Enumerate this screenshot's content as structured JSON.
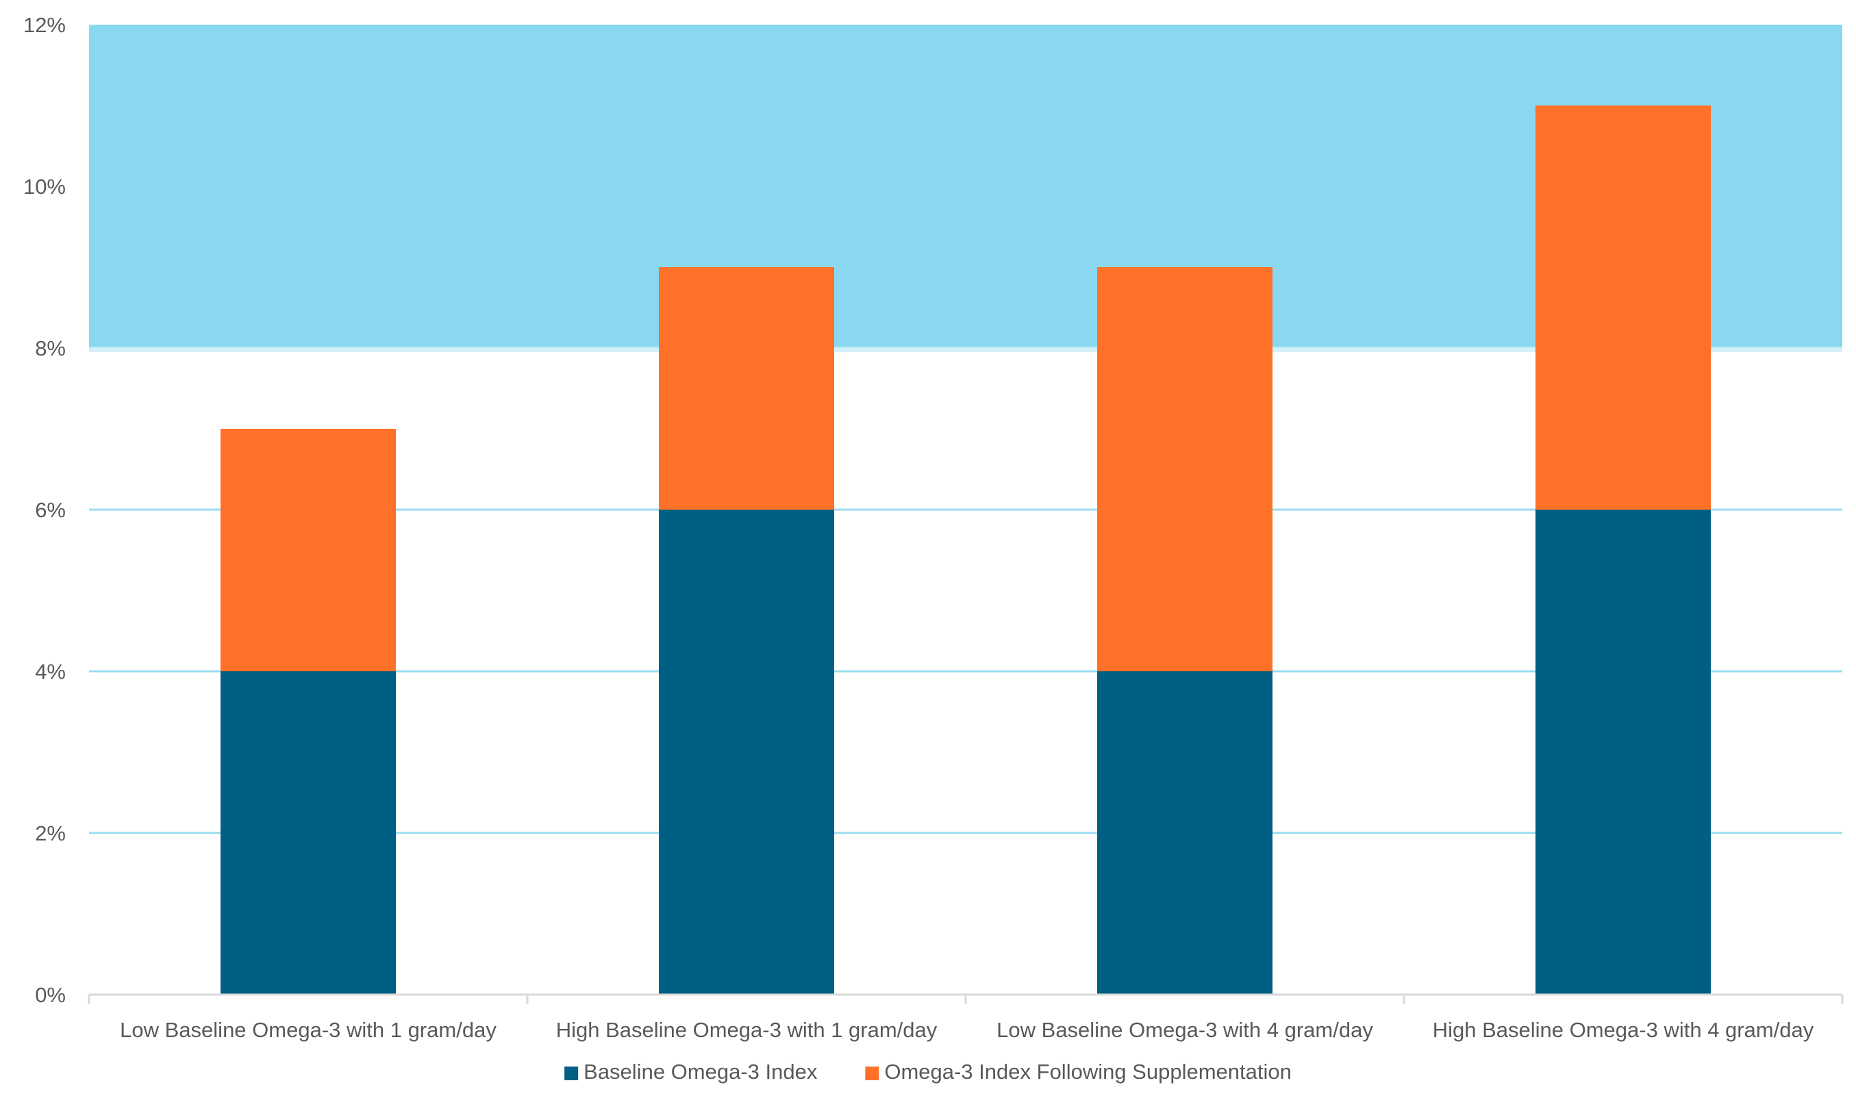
{
  "chart_data": {
    "type": "bar",
    "stacked": true,
    "title": "",
    "xlabel": "",
    "ylabel": "",
    "ylim": [
      0,
      12
    ],
    "y_ticks": [
      0,
      2,
      4,
      6,
      8,
      10,
      12
    ],
    "y_tick_format": "percent",
    "target_band": {
      "from": 8,
      "to": 12,
      "color": "#89D8F0"
    },
    "categories": [
      "Low Baseline Omega-3 with 1 gram/day",
      "High Baseline Omega-3 with 1 gram/day",
      "Low Baseline Omega-3 with 4 gram/day",
      "High Baseline Omega-3 with 4 gram/day"
    ],
    "series": [
      {
        "name": "Baseline Omega-3 Index",
        "color": "#005F83",
        "values": [
          4,
          6,
          4,
          6
        ]
      },
      {
        "name": "Omega-3 Index Following Supplementation",
        "color": "#FF7029",
        "values": [
          3,
          3,
          5,
          5
        ]
      }
    ],
    "legend_position": "bottom",
    "grid": true,
    "gridline_color": "#9BDCF2"
  }
}
